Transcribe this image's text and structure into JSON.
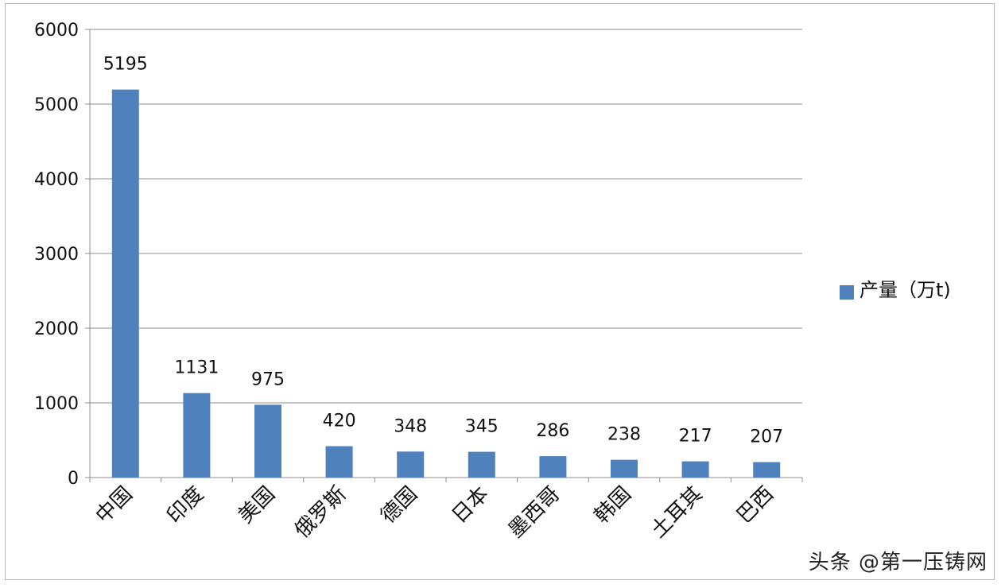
{
  "chart_data": {
    "type": "bar",
    "categories": [
      "中国",
      "印度",
      "美国",
      "俄罗斯",
      "德国",
      "日本",
      "墨西哥",
      "韩国",
      "土耳其",
      "巴西"
    ],
    "series": [
      {
        "name": "产量（万t)",
        "values": [
          5195,
          1131,
          975,
          420,
          348,
          345,
          286,
          238,
          217,
          207
        ]
      }
    ],
    "data_labels": [
      "5195",
      "1131",
      "975",
      "420",
      "348",
      "345",
      "286",
      "238",
      "217",
      "207"
    ],
    "ylim": [
      0,
      6000
    ],
    "yticks": [
      0,
      1000,
      2000,
      3000,
      4000,
      5000,
      6000
    ],
    "ytick_labels": [
      "0",
      "1000",
      "2000",
      "3000",
      "4000",
      "5000",
      "6000"
    ],
    "grid": true,
    "legend_position": "right",
    "bar_color": "#4f81bd"
  },
  "watermark": "头条 @第一压铸网"
}
